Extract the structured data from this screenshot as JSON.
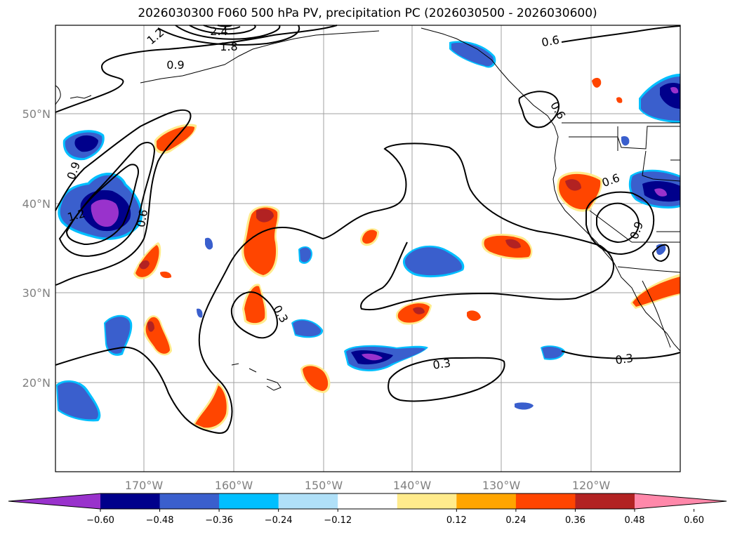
{
  "title": "2026030300 F060 500 hPa PV, precipitation PC (2026030500 - 2026030600)",
  "lat_labels": [
    "50°N",
    "40°N",
    "30°N",
    "20°N"
  ],
  "lon_labels": [
    "170°W",
    "160°W",
    "150°W",
    "140°W",
    "130°W",
    "120°W"
  ],
  "contour_labels": [
    "0.9",
    "1.2",
    "1.8",
    "2.4",
    "0.9",
    "1.2",
    "0.6",
    "0.6",
    "0.6",
    "0.9",
    "0.6",
    "0.3",
    "0.3",
    "0.3"
  ],
  "colorbar": {
    "colors": [
      "#9932CC",
      "#00008B",
      "#3A5FCD",
      "#00BFFF",
      "#B0E0F8",
      "#FFFFFF",
      "#FFEB8C",
      "#FFA500",
      "#FF4500",
      "#B22222",
      "#FF88AA"
    ],
    "ticks": [
      "−0.60",
      "−0.48",
      "−0.36",
      "−0.24",
      "−0.12",
      "0.12",
      "0.24",
      "0.36",
      "0.48",
      "0.60"
    ]
  },
  "colors": {
    "grid": "#a0a0a0",
    "neg_light": "#00BFFF",
    "neg_mid": "#3A5FCD",
    "neg_dark": "#00008B",
    "neg_extreme": "#9932CC",
    "pos_light": "#FFEB8C",
    "pos_mid": "#FF4500",
    "pos_dark": "#B22222"
  }
}
